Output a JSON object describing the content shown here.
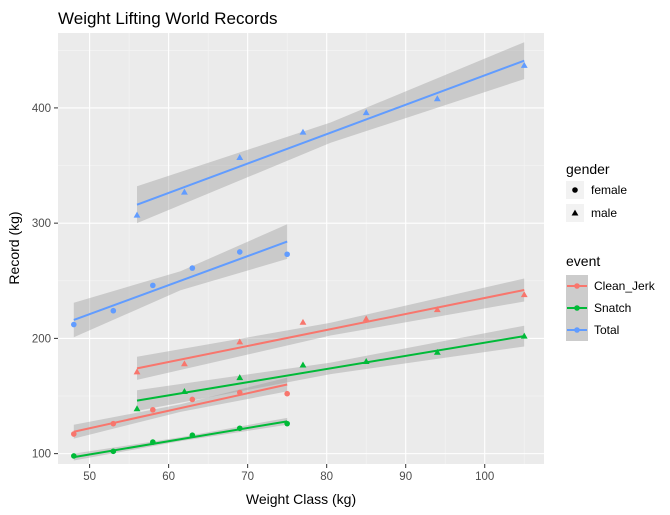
{
  "chart_data": {
    "type": "scatter",
    "title": "Weight Lifting World Records",
    "xlabel": "Weight Class (kg)",
    "ylabel": "Record (kg)",
    "xlim": [
      46,
      107.5
    ],
    "ylim": [
      91,
      465
    ],
    "x_ticks": [
      50,
      60,
      70,
      80,
      90,
      100
    ],
    "y_ticks": [
      100,
      200,
      300,
      400
    ],
    "grid": true,
    "legend_position": "right",
    "gender_legend": {
      "title": "gender",
      "items": [
        {
          "label": "female",
          "shape": "circle"
        },
        {
          "label": "male",
          "shape": "triangle"
        }
      ]
    },
    "event_legend": {
      "title": "event",
      "items": [
        {
          "label": "Clean_Jerk",
          "color": "#F8766D"
        },
        {
          "label": "Snatch",
          "color": "#00BA38"
        },
        {
          "label": "Total",
          "color": "#619CFF"
        }
      ]
    },
    "series": [
      {
        "event": "Clean_Jerk",
        "gender": "female",
        "color": "#F8766D",
        "shape": "circle",
        "x": [
          48,
          53,
          58,
          63,
          69,
          75
        ],
        "y": [
          117,
          126,
          138,
          147,
          153,
          152
        ],
        "fit": {
          "x": [
            48,
            75
          ],
          "y": [
            119,
            160
          ],
          "band": 6
        }
      },
      {
        "event": "Clean_Jerk",
        "gender": "male",
        "color": "#F8766D",
        "shape": "triangle",
        "x": [
          56,
          62,
          69,
          77,
          85,
          94,
          105
        ],
        "y": [
          171,
          178,
          197,
          214,
          217,
          225,
          238
        ],
        "fit": {
          "x": [
            56,
            105
          ],
          "y": [
            174,
            242
          ],
          "band": 10
        }
      },
      {
        "event": "Snatch",
        "gender": "female",
        "color": "#00BA38",
        "shape": "circle",
        "x": [
          48,
          53,
          58,
          63,
          69,
          75
        ],
        "y": [
          98,
          102,
          110,
          116,
          122,
          126
        ],
        "fit": {
          "x": [
            48,
            75
          ],
          "y": [
            97,
            128
          ],
          "band": 3
        }
      },
      {
        "event": "Snatch",
        "gender": "male",
        "color": "#00BA38",
        "shape": "triangle",
        "x": [
          56,
          62,
          69,
          77,
          85,
          94,
          105
        ],
        "y": [
          139,
          154,
          166,
          177,
          180,
          188,
          202
        ],
        "fit": {
          "x": [
            56,
            105
          ],
          "y": [
            146,
            202
          ],
          "band": 9
        }
      },
      {
        "event": "Total",
        "gender": "female",
        "color": "#619CFF",
        "shape": "circle",
        "x": [
          48,
          53,
          58,
          63,
          69,
          75
        ],
        "y": [
          212,
          224,
          246,
          261,
          275,
          273
        ],
        "fit": {
          "x": [
            48,
            75
          ],
          "y": [
            216,
            284
          ],
          "band": 15
        }
      },
      {
        "event": "Total",
        "gender": "male",
        "color": "#619CFF",
        "shape": "triangle",
        "x": [
          56,
          62,
          69,
          77,
          85,
          94,
          105
        ],
        "y": [
          307,
          327,
          357,
          379,
          396,
          408,
          437
        ],
        "fit": {
          "x": [
            56,
            105
          ],
          "y": [
            316,
            441
          ],
          "band": 16
        }
      }
    ]
  }
}
